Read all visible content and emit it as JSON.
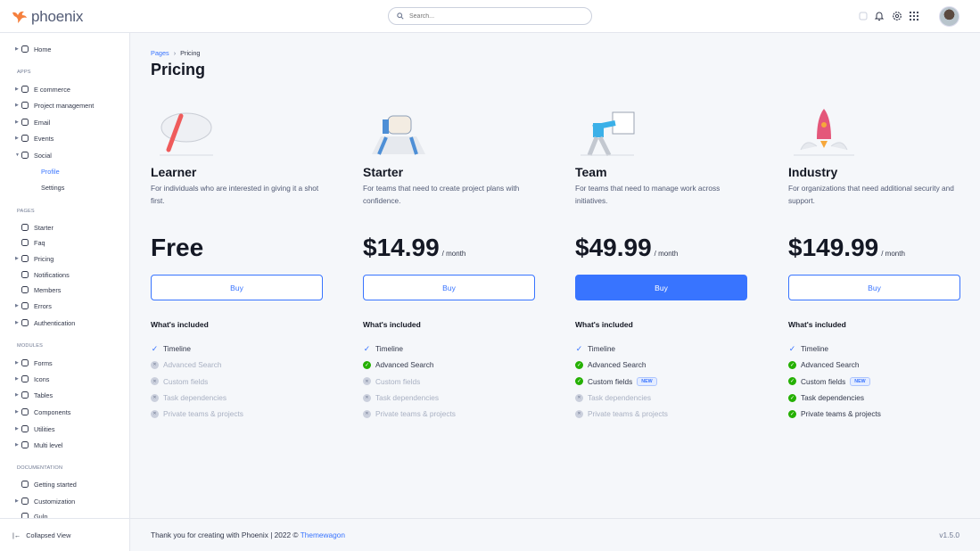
{
  "brand": {
    "name": "phoenix",
    "logo_color": "#f5803e"
  },
  "search": {
    "placeholder": "Search..."
  },
  "topbar_icons": [
    "theme-toggle-icon",
    "bell-icon",
    "gear-icon",
    "apps-grid-icon"
  ],
  "sidebar": {
    "entries": [
      {
        "type": "item",
        "label": "Home",
        "icon": "pie-chart-icon",
        "caret": true
      },
      {
        "type": "head",
        "label": "APPS"
      },
      {
        "type": "item",
        "label": "E commerce",
        "icon": "cart-icon",
        "caret": true
      },
      {
        "type": "item",
        "label": "Project management",
        "icon": "clipboard-icon",
        "caret": true
      },
      {
        "type": "item",
        "label": "Email",
        "icon": "mail-icon",
        "caret": true
      },
      {
        "type": "item",
        "label": "Events",
        "icon": "clipboard-icon",
        "caret": true
      },
      {
        "type": "item",
        "label": "Social",
        "icon": "share-icon",
        "caret": true,
        "open": true
      },
      {
        "type": "sub",
        "label": "Profile",
        "active": true
      },
      {
        "type": "sub",
        "label": "Settings"
      },
      {
        "type": "head",
        "label": "PAGES"
      },
      {
        "type": "item",
        "label": "Starter",
        "icon": "compass-icon"
      },
      {
        "type": "item",
        "label": "Faq",
        "icon": "help-circle-icon"
      },
      {
        "type": "item",
        "label": "Pricing",
        "icon": "tag-icon",
        "caret": true
      },
      {
        "type": "item",
        "label": "Notifications",
        "icon": "bell-icon"
      },
      {
        "type": "item",
        "label": "Members",
        "icon": "users-icon"
      },
      {
        "type": "item",
        "label": "Errors",
        "icon": "alert-triangle-icon",
        "caret": true
      },
      {
        "type": "item",
        "label": "Authentication",
        "icon": "lock-icon",
        "caret": true
      },
      {
        "type": "head",
        "label": "MODULES"
      },
      {
        "type": "item",
        "label": "Forms",
        "icon": "file-text-icon",
        "caret": true
      },
      {
        "type": "item",
        "label": "Icons",
        "icon": "grid-icon",
        "caret": true
      },
      {
        "type": "item",
        "label": "Tables",
        "icon": "columns-icon",
        "caret": true
      },
      {
        "type": "item",
        "label": "Components",
        "icon": "package-icon",
        "caret": true
      },
      {
        "type": "item",
        "label": "Utilities",
        "icon": "tool-icon",
        "caret": true
      },
      {
        "type": "item",
        "label": "Multi level",
        "icon": "layers-icon",
        "caret": true
      },
      {
        "type": "head",
        "label": "DOCUMENTATION"
      },
      {
        "type": "item",
        "label": "Getting started",
        "icon": "life-buoy-icon"
      },
      {
        "type": "item",
        "label": "Customization",
        "icon": "settings-icon",
        "caret": true
      },
      {
        "type": "item",
        "label": "Gulp",
        "icon": "gulp-icon"
      }
    ],
    "collapse_label": "Collapsed View"
  },
  "breadcrumb": {
    "parent": "Pages",
    "current": "Pricing"
  },
  "page_title": "Pricing",
  "plans": [
    {
      "name": "Learner",
      "desc": "For individuals who are interested in giving it a shot first.",
      "price": "Free",
      "period": "",
      "button": "Buy",
      "primary": false,
      "illustration": "pen-signature-illustration",
      "features": [
        {
          "label": "Timeline",
          "state": "check"
        },
        {
          "label": "Advanced Search",
          "state": "off"
        },
        {
          "label": "Custom fields",
          "state": "off"
        },
        {
          "label": "Task dependencies",
          "state": "off"
        },
        {
          "label": "Private teams & projects",
          "state": "off"
        }
      ]
    },
    {
      "name": "Starter",
      "desc": "For teams that need to create project plans with confidence.",
      "price": "$14.99",
      "period": "/ month",
      "button": "Buy",
      "primary": false,
      "illustration": "thumbs-up-illustration",
      "features": [
        {
          "label": "Timeline",
          "state": "check"
        },
        {
          "label": "Advanced Search",
          "state": "on"
        },
        {
          "label": "Custom fields",
          "state": "off"
        },
        {
          "label": "Task dependencies",
          "state": "off"
        },
        {
          "label": "Private teams & projects",
          "state": "off"
        }
      ]
    },
    {
      "name": "Team",
      "desc": "For teams that need to manage work across initiatives.",
      "price": "$49.99",
      "period": "/ month",
      "button": "Buy",
      "primary": true,
      "illustration": "presenter-illustration",
      "features": [
        {
          "label": "Timeline",
          "state": "check"
        },
        {
          "label": "Advanced Search",
          "state": "on"
        },
        {
          "label": "Custom fields",
          "state": "on",
          "badge": "NEW"
        },
        {
          "label": "Task dependencies",
          "state": "off"
        },
        {
          "label": "Private teams & projects",
          "state": "off"
        }
      ]
    },
    {
      "name": "Industry",
      "desc": "For organizations that need additional security and support.",
      "price": "$149.99",
      "period": "/ month",
      "button": "Buy",
      "primary": false,
      "illustration": "rocket-illustration",
      "features": [
        {
          "label": "Timeline",
          "state": "check"
        },
        {
          "label": "Advanced Search",
          "state": "on"
        },
        {
          "label": "Custom fields",
          "state": "on",
          "badge": "NEW"
        },
        {
          "label": "Task dependencies",
          "state": "on"
        },
        {
          "label": "Private teams & projects",
          "state": "on"
        }
      ]
    }
  ],
  "included_label": "What's included",
  "footer": {
    "text": "Thank you for creating with Phoenix | 2022 ©",
    "link": "Themewagon",
    "version": "v1.5.0"
  },
  "colors": {
    "primary": "#3874ff",
    "success": "#25b003",
    "muted": "#cbd0dd"
  }
}
